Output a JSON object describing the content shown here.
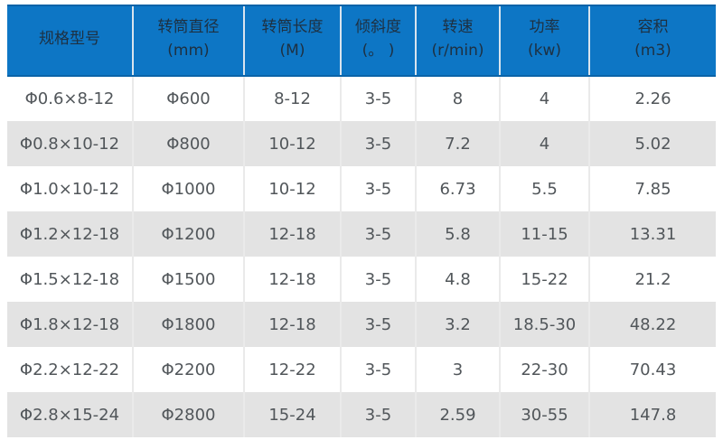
{
  "chart_data": {
    "type": "table",
    "title": "",
    "columns": [
      {
        "label": "规格型号",
        "unit": ""
      },
      {
        "label": "转筒直径",
        "unit": "(mm)"
      },
      {
        "label": "转筒长度",
        "unit": "(M)"
      },
      {
        "label": "倾斜度",
        "unit": "(。 )"
      },
      {
        "label": "转速",
        "unit": "(r/min)"
      },
      {
        "label": "功率",
        "unit": "(kw)"
      },
      {
        "label": "容积",
        "unit": "(m3)"
      }
    ],
    "rows": [
      [
        "Φ0.6×8-12",
        "Φ600",
        "8-12",
        "3-5",
        "8",
        "4",
        "2.26"
      ],
      [
        "Φ0.8×10-12",
        "Φ800",
        "10-12",
        "3-5",
        "7.2",
        "4",
        "5.02"
      ],
      [
        "Φ1.0×10-12",
        "Φ1000",
        "10-12",
        "3-5",
        "6.73",
        "5.5",
        "7.85"
      ],
      [
        "Φ1.2×12-18",
        "Φ1200",
        "12-18",
        "3-5",
        "5.8",
        "11-15",
        "13.31"
      ],
      [
        "Φ1.5×12-18",
        "Φ1500",
        "12-18",
        "3-5",
        "4.8",
        "15-22",
        "21.2"
      ],
      [
        "Φ1.8×12-18",
        "Φ1800",
        "12-18",
        "3-5",
        "3.2",
        "18.5-30",
        "48.22"
      ],
      [
        "Φ2.2×12-22",
        "Φ2200",
        "12-22",
        "3-5",
        "3",
        "22-30",
        "70.43"
      ],
      [
        "Φ2.8×15-24",
        "Φ2800",
        "15-24",
        "3-5",
        "2.59",
        "30-55",
        "147.8"
      ]
    ]
  },
  "colors": {
    "header_bg": "#0d76c5",
    "header_border": "#0a63a8",
    "header_sep": "#d9e4ee",
    "header_text": "#1e3041",
    "row_bg": "#ffffff",
    "row_alt_bg": "#e3e3e3",
    "cell_text": "#51565a",
    "separator": "#eaeaea"
  }
}
